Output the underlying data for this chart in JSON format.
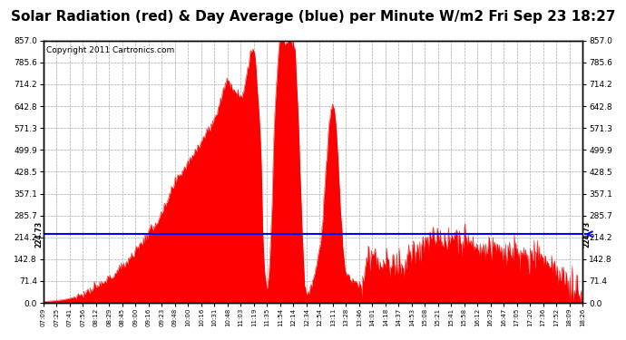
{
  "title": "Solar Radiation (red) & Day Average (blue) per Minute W/m2 Fri Sep 23 18:27",
  "copyright": "Copyright 2011 Cartronics.com",
  "y_max": 857.0,
  "y_min": 0.0,
  "y_ticks": [
    0.0,
    71.4,
    142.8,
    214.2,
    285.7,
    357.1,
    428.5,
    499.9,
    571.3,
    642.8,
    714.2,
    785.6,
    857.0
  ],
  "day_average": 224.73,
  "fill_color": "#FF0000",
  "avg_line_color": "#0000FF",
  "background_color": "#FFFFFF",
  "grid_color": "#AAAAAA",
  "title_fontsize": 11,
  "copyright_fontsize": 6.5,
  "x_tick_labels": [
    "07:09",
    "07:25",
    "07:41",
    "07:56",
    "08:12",
    "08:29",
    "08:45",
    "09:00",
    "09:16",
    "09:23",
    "09:48",
    "10:00",
    "10:16",
    "10:31",
    "10:48",
    "11:03",
    "11:19",
    "11:35",
    "11:54",
    "12:14",
    "12:34",
    "12:54",
    "13:11",
    "13:28",
    "13:46",
    "14:01",
    "14:18",
    "14:37",
    "14:53",
    "15:08",
    "15:21",
    "15:41",
    "15:58",
    "16:12",
    "16:29",
    "16:47",
    "17:05",
    "17:20",
    "17:36",
    "17:52",
    "18:09",
    "18:26"
  ]
}
